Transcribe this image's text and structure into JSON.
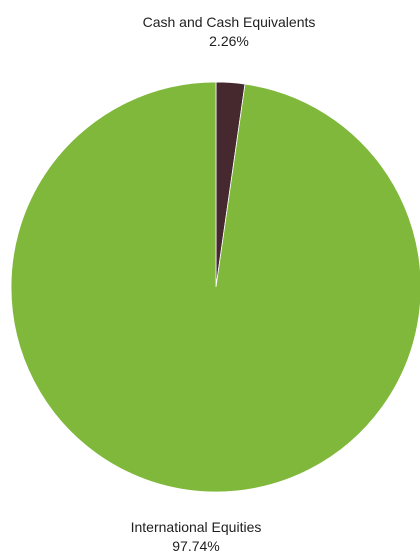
{
  "chart_data": {
    "type": "pie",
    "title": "",
    "slices": [
      {
        "label": "Cash and Cash Equivalents",
        "value": 2.26,
        "value_label": "2.26%",
        "color": "#45292f"
      },
      {
        "label": "International Equities",
        "value": 97.74,
        "value_label": "97.74%",
        "color": "#7fb83b"
      }
    ],
    "legend": "none",
    "data_labels": "outside"
  }
}
